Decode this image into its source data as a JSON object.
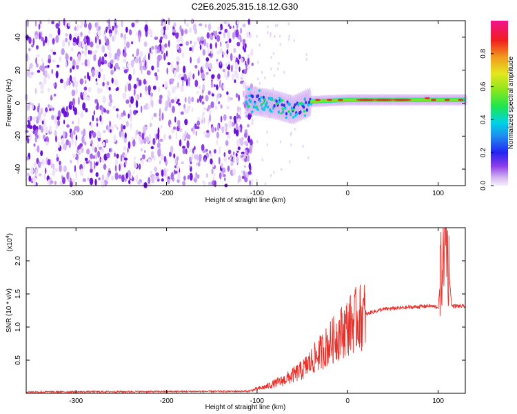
{
  "title": "C2E6.2025.315.18.12.G30",
  "chart_data": [
    {
      "type": "heatmap",
      "xlabel": "Height of straight line (km)",
      "ylabel": "Frequency (Hz)",
      "xlim": [
        -355,
        130
      ],
      "ylim": [
        -50,
        50
      ],
      "x_ticks": [
        -300,
        -200,
        -100,
        0,
        100
      ],
      "y_ticks": [
        -40,
        -20,
        0,
        20,
        40
      ],
      "colorbar": {
        "label": "Normalized spectral amplitude",
        "range": [
          0,
          1
        ],
        "ticks": [
          0.0,
          0.2,
          0.4,
          0.6,
          0.8
        ]
      },
      "description_points": {
        "noise_region_x": [
          -355,
          -105
        ],
        "signal_band_center_hz": [
          {
            "x": -110,
            "y": 2
          },
          {
            "x": -80,
            "y": -1
          },
          {
            "x": -60,
            "y": -4
          },
          {
            "x": -40,
            "y": 1
          },
          {
            "x": 0,
            "y": 2
          },
          {
            "x": 50,
            "y": 2
          },
          {
            "x": 100,
            "y": 2
          },
          {
            "x": 130,
            "y": 2
          }
        ]
      }
    },
    {
      "type": "line",
      "xlabel": "Height of straight line (km)",
      "ylabel": "SNR (10 * v/v)",
      "ymultiplier": "(x10",
      "ymultiplier_exp": "4",
      "ymultiplier_close": ")",
      "xlim": [
        -355,
        130
      ],
      "ylim": [
        0,
        2.5
      ],
      "x_ticks": [
        -300,
        -200,
        -100,
        0,
        100
      ],
      "y_ticks": [
        0.5,
        1.0,
        1.5,
        2.0
      ],
      "series_color": "#e8302a",
      "envelope": [
        {
          "x": -355,
          "y": 0.02
        },
        {
          "x": -110,
          "y": 0.03
        },
        {
          "x": -90,
          "y": 0.1
        },
        {
          "x": -70,
          "y": 0.2
        },
        {
          "x": -50,
          "y": 0.35
        },
        {
          "x": -35,
          "y": 0.55
        },
        {
          "x": -20,
          "y": 0.75
        },
        {
          "x": -5,
          "y": 0.95
        },
        {
          "x": 10,
          "y": 1.12
        },
        {
          "x": 25,
          "y": 1.22
        },
        {
          "x": 40,
          "y": 1.27
        },
        {
          "x": 70,
          "y": 1.3
        },
        {
          "x": 90,
          "y": 1.32
        },
        {
          "x": 100,
          "y": 1.3
        },
        {
          "x": 108,
          "y": 2.5
        },
        {
          "x": 115,
          "y": 1.32
        },
        {
          "x": 130,
          "y": 1.31
        }
      ]
    }
  ]
}
